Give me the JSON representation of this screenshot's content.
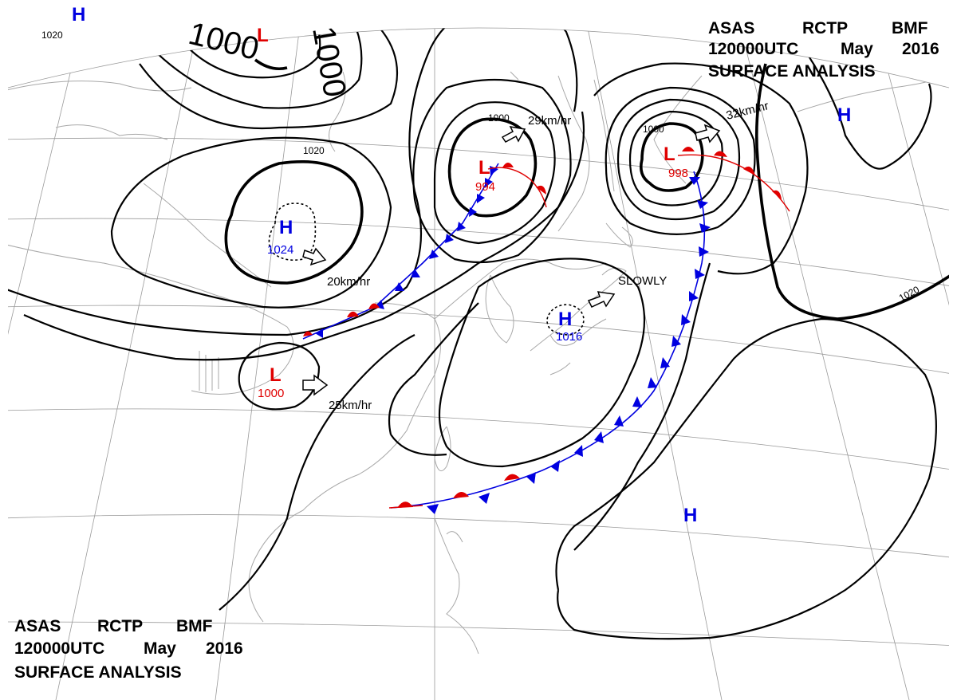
{
  "header_top": {
    "line1": [
      "ASAS",
      "RCTP",
      "BMF"
    ],
    "line2": [
      "120000UTC",
      "May",
      "2016"
    ],
    "line3": "SURFACE ANALYSIS"
  },
  "header_bottom": {
    "line1": [
      "ASAS",
      "RCTP",
      "BMF"
    ],
    "line2": [
      "120000UTC",
      "May",
      "2016"
    ],
    "line3": "SURFACE ANALYSIS"
  },
  "colors": {
    "high": "#0000e0",
    "low": "#e00000",
    "cold_front": "#0000e0",
    "warm_front": "#e00000"
  },
  "pressure_systems": [
    {
      "id": "high-topleft",
      "type": "H",
      "value": ""
    },
    {
      "id": "low-top",
      "type": "L",
      "value": ""
    },
    {
      "id": "high-mongolia",
      "type": "H",
      "value": "1024"
    },
    {
      "id": "low-manchuria",
      "type": "L",
      "value": "994"
    },
    {
      "id": "low-kuril",
      "type": "L",
      "value": "998"
    },
    {
      "id": "high-east",
      "type": "H",
      "value": ""
    },
    {
      "id": "low-west",
      "type": "L",
      "value": "1000"
    },
    {
      "id": "high-japan",
      "type": "H",
      "value": "1016"
    },
    {
      "id": "high-pacific",
      "type": "H",
      "value": ""
    }
  ],
  "movements": [
    {
      "id": "move-manchuria",
      "text": "29km/hr"
    },
    {
      "id": "move-kuril",
      "text": "32km/hr"
    },
    {
      "id": "move-mongolia",
      "text": "20km/hr"
    },
    {
      "id": "move-west",
      "text": "25km/hr"
    },
    {
      "id": "move-japan",
      "text": "SLOWLY"
    }
  ],
  "isobar_labels": {
    "topleft": "1020",
    "big1": "1000",
    "big2": "1000",
    "mongolia": "1020",
    "manchuria": "1000",
    "kuril": "1000",
    "east": "1020"
  }
}
